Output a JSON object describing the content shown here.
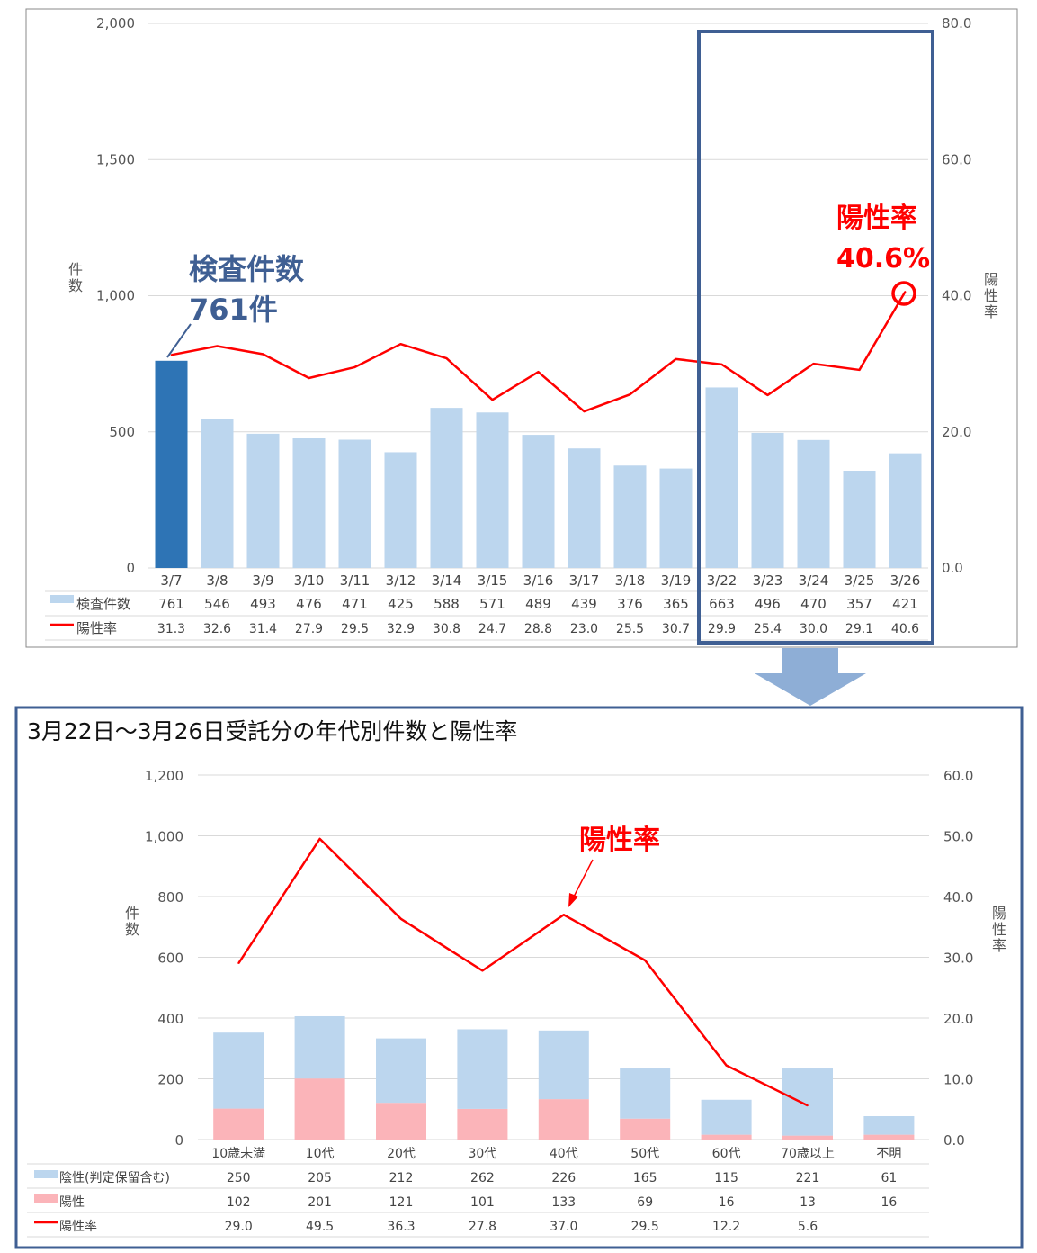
{
  "chart_data": [
    {
      "type": "bar",
      "categories": [
        "3/7",
        "3/8",
        "3/9",
        "3/10",
        "3/11",
        "3/12",
        "3/14",
        "3/15",
        "3/16",
        "3/17",
        "3/18",
        "3/19",
        "3/22",
        "3/23",
        "3/24",
        "3/25",
        "3/26"
      ],
      "series": [
        {
          "name": "検査件数",
          "values": [
            761,
            546,
            493,
            476,
            471,
            425,
            588,
            571,
            489,
            439,
            376,
            365,
            663,
            496,
            470,
            357,
            421
          ],
          "axis": "left",
          "color": "#bcd6ee",
          "highlight_color": "#2e74b5"
        },
        {
          "name": "陽性率",
          "type": "line",
          "values": [
            31.3,
            32.6,
            31.4,
            27.9,
            29.5,
            32.9,
            30.8,
            24.7,
            28.8,
            23.0,
            25.5,
            30.7,
            29.9,
            25.4,
            30.0,
            29.1,
            40.6
          ],
          "axis": "right",
          "color": "#ff0000"
        }
      ],
      "table_values": [
        [
          "761",
          "546",
          "493",
          "476",
          "471",
          "425",
          "588",
          "571",
          "489",
          "439",
          "376",
          "365",
          "663",
          "496",
          "470",
          "357",
          "421"
        ],
        [
          "31.3",
          "32.6",
          "31.4",
          "27.9",
          "29.5",
          "32.9",
          "30.8",
          "24.7",
          "28.8",
          "23.0",
          "25.5",
          "30.7",
          "29.9",
          "25.4",
          "30.0",
          "29.1",
          "40.6"
        ]
      ],
      "ylim": [
        0,
        2000
      ],
      "y2lim": [
        0,
        80
      ],
      "yticks": [
        "0",
        "500",
        "1,000",
        "1,500",
        "2,000"
      ],
      "y2ticks": [
        "0.0",
        "20.0",
        "40.0",
        "60.0",
        "80.0"
      ],
      "ylabel": "件数",
      "y2label": "陽性率",
      "grid": true,
      "annotations": {
        "left_title": "検査件数",
        "left_value": "761件",
        "right_title": "陽性率",
        "right_value": "40.6%"
      }
    },
    {
      "type": "bar",
      "title": "3月22日～3月26日受託分の年代別件数と陽性率",
      "categories": [
        "10歳未満",
        "10代",
        "20代",
        "30代",
        "40代",
        "50代",
        "60代",
        "70歳以上",
        "不明"
      ],
      "series": [
        {
          "name": "陰性(判定保留含む)",
          "values": [
            250,
            205,
            212,
            262,
            226,
            165,
            115,
            221,
            61
          ],
          "axis": "left",
          "color": "#bcd6ee"
        },
        {
          "name": "陽性",
          "values": [
            102,
            201,
            121,
            101,
            133,
            69,
            16,
            13,
            16
          ],
          "axis": "left",
          "color": "#fbb4b9"
        },
        {
          "name": "陽性率",
          "type": "line",
          "values": [
            29.0,
            49.5,
            36.3,
            27.8,
            37.0,
            29.5,
            12.2,
            5.6,
            null
          ],
          "axis": "right",
          "color": "#ff0000"
        }
      ],
      "table_values": [
        [
          "250",
          "205",
          "212",
          "262",
          "226",
          "165",
          "115",
          "221",
          "61"
        ],
        [
          "102",
          "201",
          "121",
          "101",
          "133",
          "69",
          "16",
          "13",
          "16"
        ],
        [
          "29.0",
          "49.5",
          "36.3",
          "27.8",
          "37.0",
          "29.5",
          "12.2",
          "5.6",
          ""
        ]
      ],
      "ylim": [
        0,
        1200
      ],
      "y2lim": [
        0,
        60
      ],
      "yticks": [
        "0",
        "200",
        "400",
        "600",
        "800",
        "1,000",
        "1,200"
      ],
      "y2ticks": [
        "0.0",
        "10.0",
        "20.0",
        "30.0",
        "40.0",
        "50.0",
        "60.0"
      ],
      "ylabel": "件数",
      "y2label": "陽性率",
      "grid": true,
      "annotations": {
        "line_label": "陽性率"
      },
      "stacking": "stacked"
    }
  ],
  "colors": {
    "frame_blue": "#3f5f93",
    "arrow": "#8eaed6",
    "line": "#ff0000"
  }
}
